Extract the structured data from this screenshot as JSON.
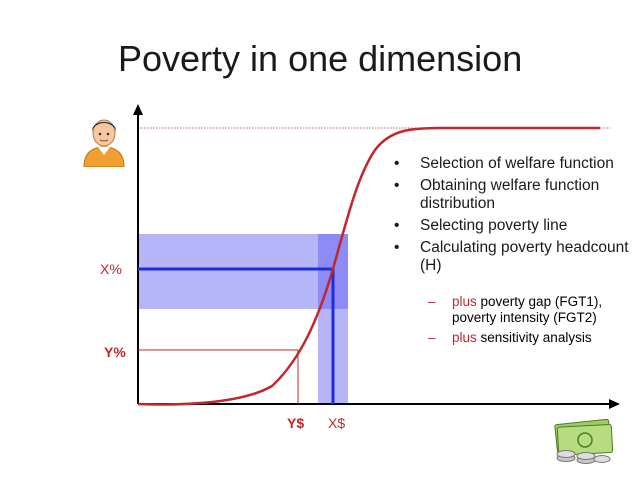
{
  "title": "Poverty in one dimension",
  "labels": {
    "x_pct": "X%",
    "y_pct": "Y%",
    "y_dollar": "Y$",
    "x_dollar": "X$"
  },
  "bullets": [
    "Selection of welfare function",
    "Obtaining welfare function distribution",
    "Selecting poverty line",
    "Calculating poverty headcount (H)"
  ],
  "sub_bullets": [
    {
      "prefix": "plus",
      "text": "poverty gap (FGT1), poverty intensity (FGT2)"
    },
    {
      "prefix": "plus",
      "text": "sensitivity analysis"
    }
  ],
  "icons": {
    "person": "person-icon",
    "money": "money-icon"
  },
  "colors": {
    "curve": "#c0282d",
    "band": "#7c7cf0",
    "line": "#1e2fd6",
    "label": "#c0282d",
    "dash": "#c0282d"
  }
}
